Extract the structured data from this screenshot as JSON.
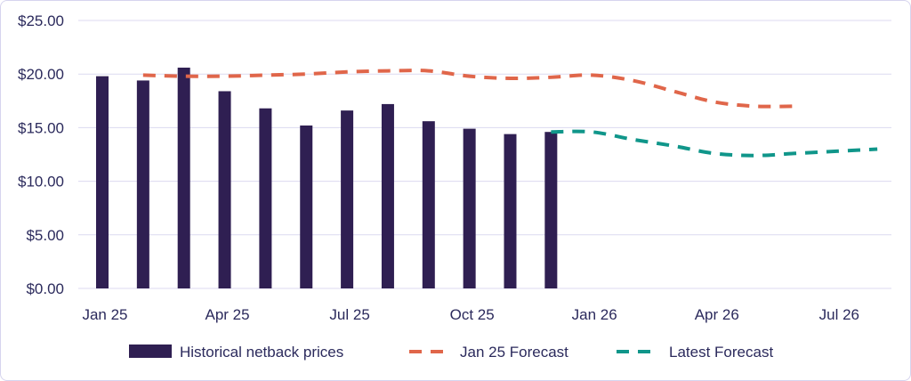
{
  "chart_data": {
    "type": "bar",
    "title": "",
    "xlabel": "",
    "ylabel": "",
    "ylim": [
      0,
      25
    ],
    "yticks": [
      "$0.00",
      "$5.00",
      "$10.00",
      "$15.00",
      "$20.00",
      "$25.00"
    ],
    "ytick_values": [
      0,
      5,
      10,
      15,
      20,
      25
    ],
    "xticks": [
      "Jan 25",
      "Apr 25",
      "Jul 25",
      "Oct 25",
      "Jan 26",
      "Apr 26",
      "Jul 26"
    ],
    "xtick_months": [
      0,
      3,
      6,
      9,
      12,
      15,
      18
    ],
    "grid": true,
    "legend_position": "bottom",
    "series": [
      {
        "name": "Historical netback prices",
        "kind": "bar",
        "color": "#2f1f52",
        "months": [
          0,
          1,
          2,
          3,
          4,
          5,
          6,
          7,
          8,
          9,
          10,
          11
        ],
        "values": [
          19.8,
          19.4,
          20.6,
          18.4,
          16.8,
          15.2,
          16.6,
          17.2,
          15.6,
          14.9,
          14.4,
          14.6
        ]
      },
      {
        "name": "Jan 25 Forecast",
        "kind": "line",
        "color": "#e0664a",
        "months": [
          1,
          2,
          3,
          4,
          5,
          6,
          7,
          8,
          9,
          10,
          11,
          12,
          13,
          14,
          15,
          16,
          17
        ],
        "values": [
          19.9,
          19.8,
          19.8,
          19.9,
          20.0,
          20.2,
          20.3,
          20.3,
          19.8,
          19.6,
          19.7,
          19.9,
          19.4,
          18.4,
          17.4,
          17.0,
          17.0
        ]
      },
      {
        "name": "Latest Forecast",
        "kind": "line",
        "color": "#10968a",
        "months": [
          11,
          12,
          13,
          14,
          15,
          16,
          17,
          18,
          19
        ],
        "values": [
          14.6,
          14.6,
          13.9,
          13.3,
          12.6,
          12.4,
          12.6,
          12.8,
          13.0
        ]
      }
    ]
  }
}
